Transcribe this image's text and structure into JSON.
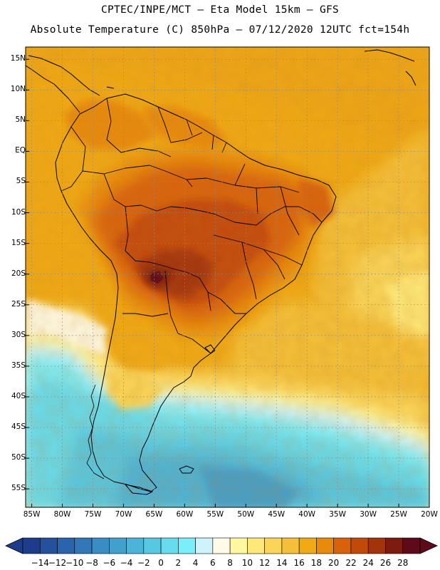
{
  "header": {
    "line1": "CPTEC/INPE/MCT –  Eta Model 15km – GFS",
    "line2": "Absolute Temperature (C) 850hPa – 07/12/2020 12UTC fct=154h"
  },
  "axes": {
    "lat_labels": [
      "15N",
      "10N",
      "5N",
      "EQ",
      "5S",
      "10S",
      "15S",
      "20S",
      "25S",
      "30S",
      "35S",
      "40S",
      "45S",
      "50S",
      "55S"
    ],
    "lat_values": [
      15,
      10,
      5,
      0,
      -5,
      -10,
      -15,
      -20,
      -25,
      -30,
      -35,
      -40,
      -45,
      -50,
      -55
    ],
    "lon_labels": [
      "85W",
      "80W",
      "75W",
      "70W",
      "65W",
      "60W",
      "55W",
      "50W",
      "45W",
      "40W",
      "35W",
      "30W",
      "25W",
      "20W"
    ],
    "lon_values": [
      -85,
      -80,
      -75,
      -70,
      -65,
      -60,
      -55,
      -50,
      -45,
      -40,
      -35,
      -30,
      -25,
      -20
    ],
    "lon_range": [
      -86,
      -20
    ],
    "lat_range": [
      -58,
      17
    ]
  },
  "colorbar": {
    "labels": [
      "-14",
      "-12",
      "-10",
      "-8",
      "-6",
      "-4",
      "-2",
      "0",
      "2",
      "4",
      "6",
      "8",
      "10",
      "12",
      "14",
      "16",
      "18",
      "20",
      "22",
      "24",
      "26",
      "28"
    ],
    "colors": [
      "#1e3c8c",
      "#24509c",
      "#2a64ac",
      "#3278b8",
      "#3a8cc4",
      "#42a0cc",
      "#4cb4d8",
      "#56c8e2",
      "#66dcee",
      "#7aeefa",
      "#cff3fa",
      "#fffbe6",
      "#fff8a0",
      "#fee878",
      "#fad558",
      "#f4c038",
      "#f0aa14",
      "#e88a0c",
      "#d8620a",
      "#c24a08",
      "#a2330a",
      "#7c1c10",
      "#5e0a18"
    ]
  }
}
